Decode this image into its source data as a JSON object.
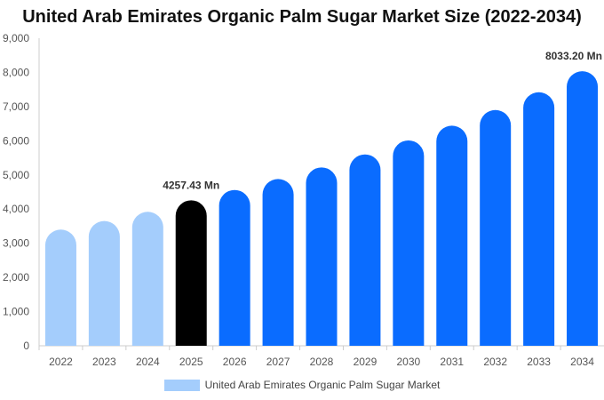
{
  "chart_data": {
    "type": "bar",
    "title": "United Arab Emirates Organic Palm Sugar Market Size (2022-2034)",
    "categories": [
      "2022",
      "2023",
      "2024",
      "2025",
      "2026",
      "2027",
      "2028",
      "2029",
      "2030",
      "2031",
      "2032",
      "2033",
      "2034"
    ],
    "series": [
      {
        "name": "United Arab Emirates Organic Palm Sugar Market",
        "values": [
          3400,
          3650,
          3920,
          4257.43,
          4560,
          4880,
          5220,
          5600,
          6010,
          6440,
          6900,
          7420,
          8033.2
        ]
      }
    ],
    "bar_colors": [
      "#a4cdfc",
      "#a4cdfc",
      "#a4cdfc",
      "#000000",
      "#0a6cff",
      "#0a6cff",
      "#0a6cff",
      "#0a6cff",
      "#0a6cff",
      "#0a6cff",
      "#0a6cff",
      "#0a6cff",
      "#0a6cff"
    ],
    "data_labels": [
      {
        "category": "2025",
        "text": "4257.43 Mn"
      },
      {
        "category": "2034",
        "text": "8033.20 Mn"
      }
    ],
    "yticks": [
      "0",
      "1,000",
      "2,000",
      "3,000",
      "4,000",
      "5,000",
      "6,000",
      "7,000",
      "8,000",
      "9,000"
    ],
    "ylim": [
      0,
      9000
    ],
    "grid": false,
    "legend": {
      "position": "bottom",
      "color": "#a4cdfc"
    }
  }
}
